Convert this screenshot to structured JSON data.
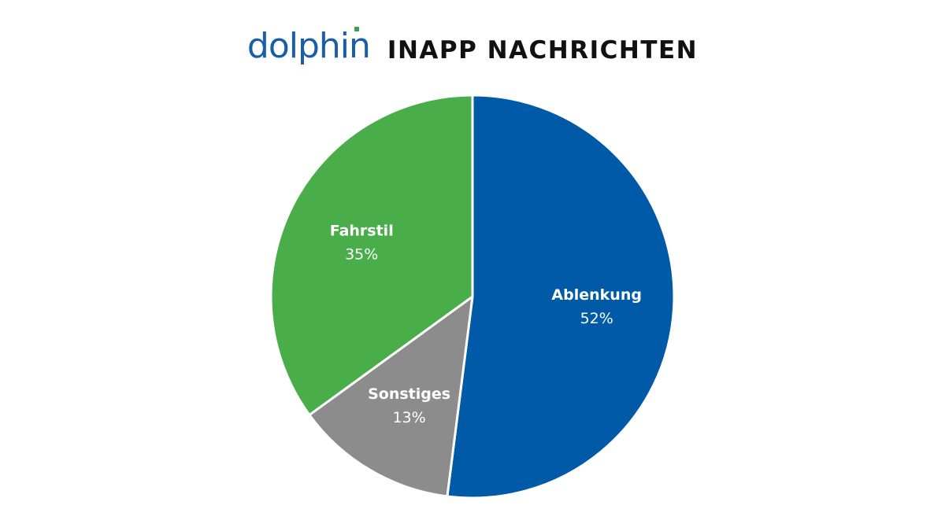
{
  "brand": {
    "logo_text": "dolphin",
    "logo_color": "#1a5ea8",
    "logo_accent_color": "#3aa14a"
  },
  "chart_data": {
    "type": "pie",
    "title": "INAPP NACHRICHTEN",
    "start_angle_deg": 0,
    "direction": "clockwise",
    "slices": [
      {
        "label": "Ablenkung",
        "value": 52,
        "value_label": "52%",
        "color": "#005aa8"
      },
      {
        "label": "Sonstiges",
        "value": 13,
        "value_label": "13%",
        "color": "#8c8c8c"
      },
      {
        "label": "Fahrstil",
        "value": 35,
        "value_label": "35%",
        "color": "#49ad4a"
      }
    ],
    "label_color": "#ffffff",
    "separator_color": "#ffffff"
  }
}
